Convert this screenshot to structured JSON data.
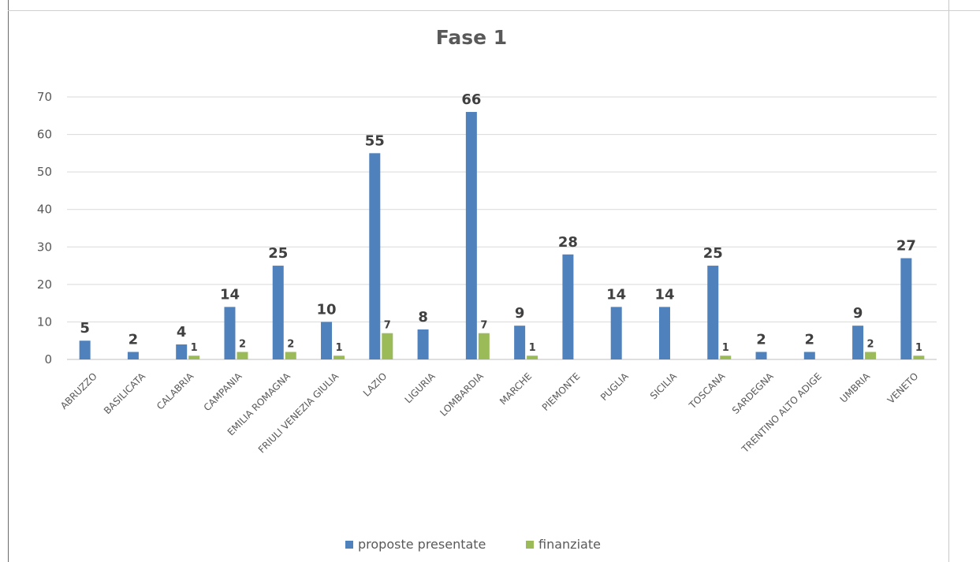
{
  "chart_data": {
    "type": "bar",
    "title": "Fase 1",
    "categories": [
      "ABRUZZO",
      "BASILICATA",
      "CALABRIA",
      "CAMPANIA",
      "EMILIA ROMAGNA",
      "FRIULI VENEZIA GIULIA",
      "LAZIO",
      "LIGURIA",
      "LOMBARDIA",
      "MARCHE",
      "PIEMONTE",
      "PUGLIA",
      "SICILIA",
      "TOSCANA",
      "SARDEGNA",
      "TRENTINO ALTO ADIGE",
      "UMBRIA",
      "VENETO"
    ],
    "series": [
      {
        "name": "proposte presentate",
        "color": "#4f81bd",
        "values": [
          5,
          2,
          4,
          14,
          25,
          10,
          55,
          8,
          66,
          9,
          28,
          14,
          14,
          25,
          2,
          2,
          9,
          27
        ]
      },
      {
        "name": "finanziate",
        "color": "#9bbb59",
        "values": [
          null,
          null,
          1,
          2,
          2,
          1,
          7,
          null,
          7,
          1,
          null,
          null,
          null,
          1,
          null,
          null,
          2,
          1
        ]
      }
    ],
    "ylim": [
      0,
      70
    ],
    "yticks": [
      0,
      10,
      20,
      30,
      40,
      50,
      60,
      70
    ],
    "grid": true,
    "legend": "bottom"
  }
}
